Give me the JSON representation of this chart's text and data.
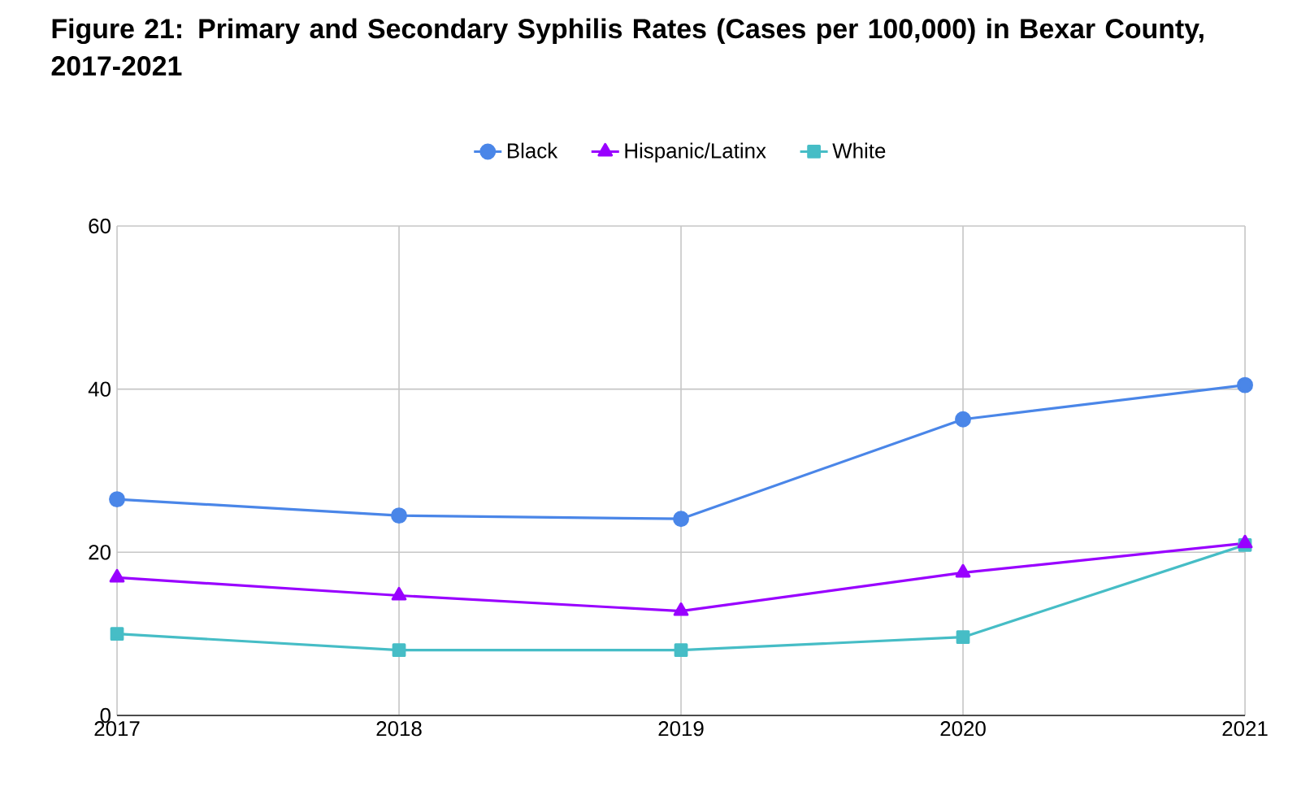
{
  "chart_data": {
    "type": "line",
    "title": "Figure 21: Primary and Secondary Syphilis Rates (Cases per 100,000) in Bexar County, 2017-2021",
    "categories": [
      "2017",
      "2018",
      "2019",
      "2020",
      "2021"
    ],
    "series": [
      {
        "name": "Black",
        "color": "#4a86e8",
        "marker": "circle",
        "values": [
          26.5,
          24.5,
          24.1,
          36.3,
          40.5
        ]
      },
      {
        "name": "Hispanic/Latinx",
        "color": "#9900ff",
        "marker": "triangle",
        "values": [
          16.9,
          14.7,
          12.8,
          17.5,
          21.1
        ]
      },
      {
        "name": "White",
        "color": "#46bdc6",
        "marker": "square",
        "values": [
          10.0,
          8.0,
          8.0,
          9.6,
          20.9
        ]
      }
    ],
    "ylim": [
      0,
      60
    ],
    "yticks": [
      0,
      20,
      40,
      60
    ],
    "grid": true,
    "legend": "top",
    "line_style": "solid"
  }
}
